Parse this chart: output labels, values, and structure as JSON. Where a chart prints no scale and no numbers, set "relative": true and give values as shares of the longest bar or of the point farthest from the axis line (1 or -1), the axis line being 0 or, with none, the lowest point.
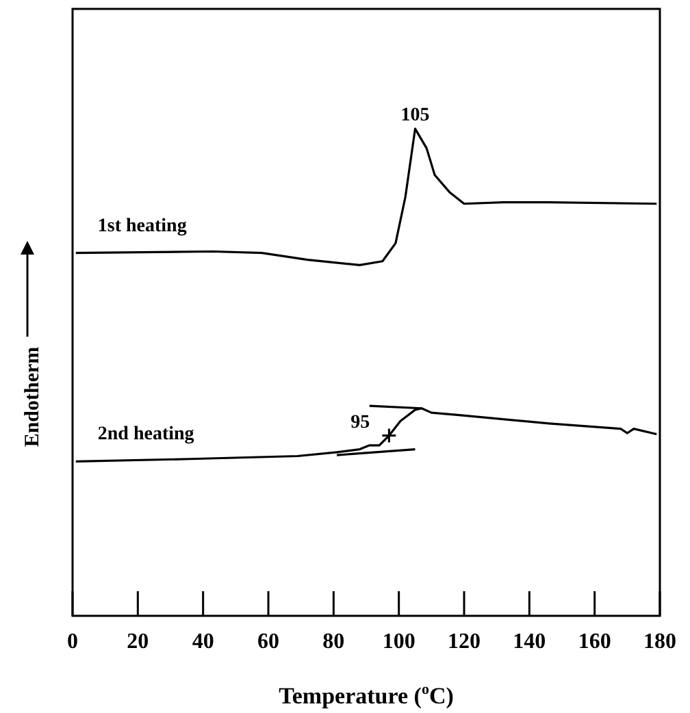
{
  "chart_data": {
    "type": "line",
    "relative": true,
    "xlabel": "Temperature ($^{o}$C)",
    "ylabel": "Endotherm",
    "xlim": [
      0,
      180
    ],
    "xticks": [
      0,
      20,
      40,
      60,
      80,
      100,
      120,
      140,
      160,
      180
    ],
    "grid": false,
    "legend": false,
    "marker": "none",
    "line_style": "solid",
    "annotations": [
      {
        "text": "105",
        "x": 105,
        "y": 1
      },
      {
        "text": "95",
        "x": 97,
        "y": 0.37
      }
    ],
    "series": [
      {
        "name": "1st heating",
        "color": "#000000",
        "x": [
          1,
          43,
          58,
          72,
          88,
          95,
          99,
          102,
          105,
          108.5,
          111,
          115.5,
          120,
          132,
          146,
          179
        ],
        "values": [
          0.745,
          0.748,
          0.745,
          0.731,
          0.72,
          0.728,
          0.765,
          0.86,
          1,
          0.96,
          0.905,
          0.87,
          0.846,
          0.849,
          0.849,
          0.846
        ]
      },
      {
        "name": "2nd heating",
        "color": "#000000",
        "x": [
          1,
          36,
          69,
          81,
          88,
          91,
          94,
          97,
          100.5,
          105,
          107,
          110,
          118.5,
          146,
          168,
          170,
          172,
          179
        ],
        "values": [
          0.317,
          0.322,
          0.328,
          0.336,
          0.342,
          0.35,
          0.35,
          0.37,
          0.4,
          0.423,
          0.426,
          0.417,
          0.412,
          0.395,
          0.384,
          0.375,
          0.384,
          0.373
        ]
      },
      {
        "type": "line",
        "color": "#000000",
        "x": [
          91,
          107
        ],
        "values": [
          0.431,
          0.426
        ]
      },
      {
        "type": "line",
        "color": "#000000",
        "x": [
          81,
          105
        ],
        "values": [
          0.33,
          0.342
        ]
      },
      {
        "type": "scatter",
        "marker": "cross",
        "color": "#000000",
        "x": [
          97
        ],
        "values": [
          0.37
        ]
      }
    ]
  }
}
